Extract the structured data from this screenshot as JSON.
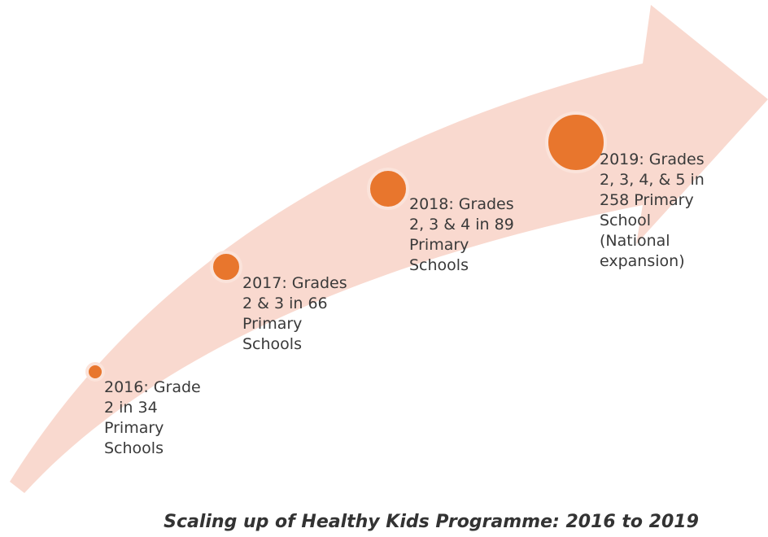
{
  "milestones": [
    {
      "lines": [
        "2016: Grade",
        "2 in 34",
        "Primary",
        "Schools"
      ]
    },
    {
      "lines": [
        "2017: Grades",
        "2 & 3 in 66",
        "Primary",
        "Schools"
      ]
    },
    {
      "lines": [
        "2018: Grades",
        "2, 3 & 4 in 89",
        "Primary",
        "Schools"
      ]
    },
    {
      "lines": [
        "2019: Grades",
        "2, 3, 4, & 5 in",
        "258 Primary",
        "School",
        "(National",
        "expansion)"
      ]
    }
  ],
  "caption": "Scaling up of Healthy Kids Programme: 2016 to 2019"
}
